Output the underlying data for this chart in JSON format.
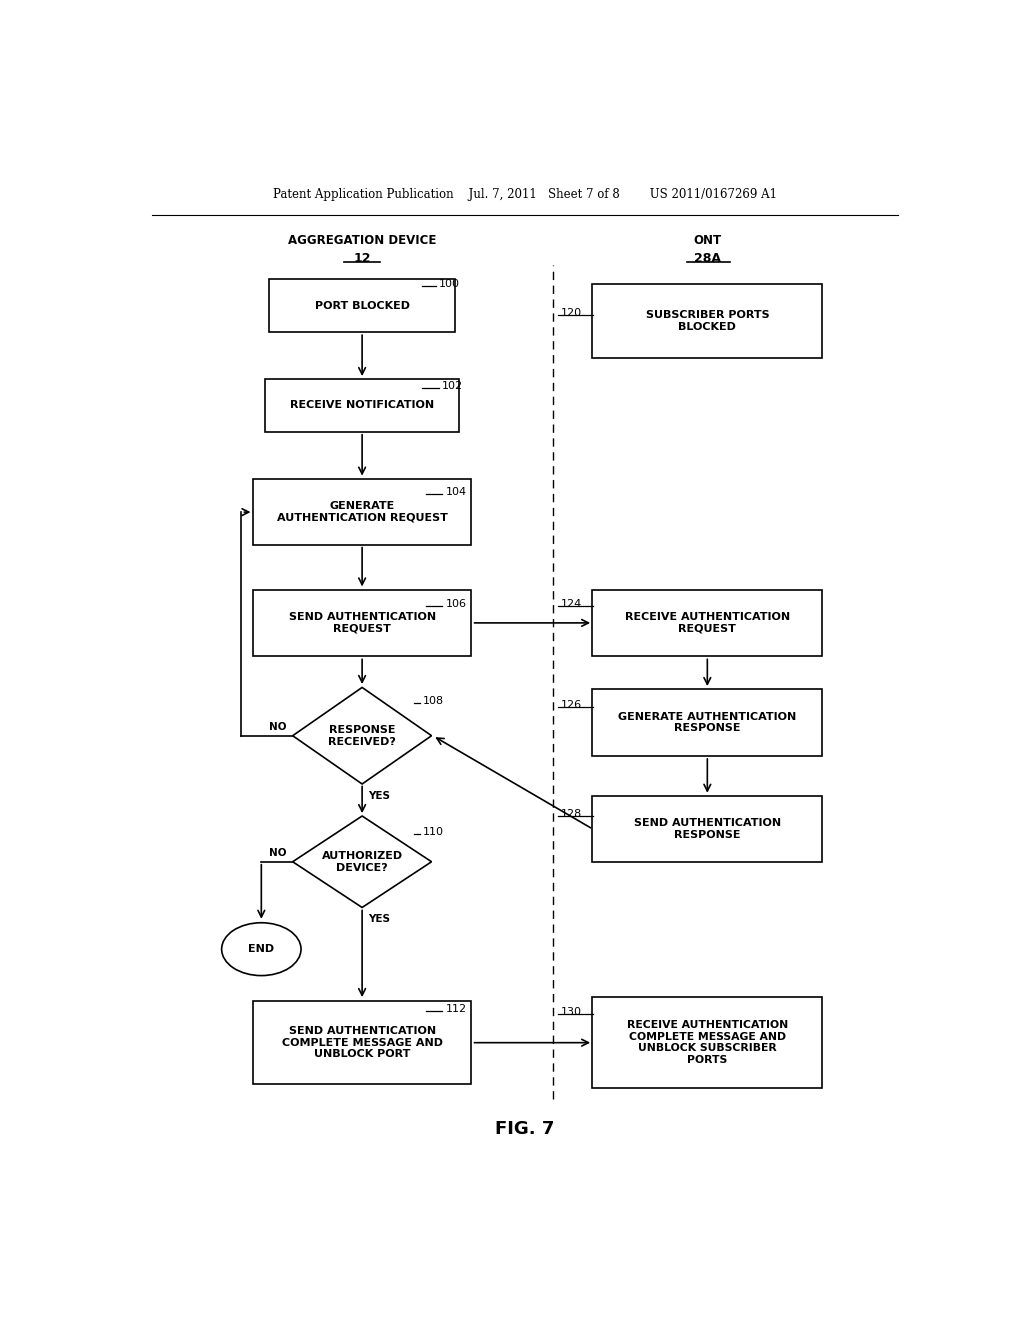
{
  "bg_color": "#ffffff",
  "header_text": "Patent Application Publication    Jul. 7, 2011   Sheet 7 of 8        US 2011/0167269 A1",
  "fig_label": "FIG. 7",
  "left_col_title": "AGGREGATION DEVICE",
  "left_col_subtitle": "12",
  "right_col_title": "ONT",
  "right_col_subtitle": "28A",
  "dashed_line_x": 0.535
}
